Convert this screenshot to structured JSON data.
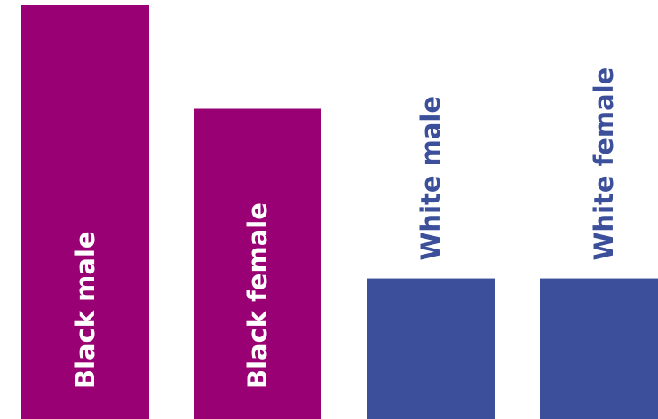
{
  "chart_data": {
    "type": "bar",
    "title": "",
    "xlabel": "",
    "ylabel": "",
    "ylim": [
      0,
      100
    ],
    "grid": false,
    "legend": "none",
    "categories": [
      "Black male",
      "Black female",
      "White male",
      "White female"
    ],
    "values": [
      100,
      75,
      34,
      34
    ],
    "colors": [
      "#990073",
      "#990073",
      "#3b4f9a",
      "#3b4f9a"
    ],
    "label_colors": [
      "#ffffff",
      "#ffffff",
      "#3b4f9a",
      "#3b4f9a"
    ],
    "label_positions": [
      "inside",
      "inside",
      "above",
      "above"
    ]
  }
}
